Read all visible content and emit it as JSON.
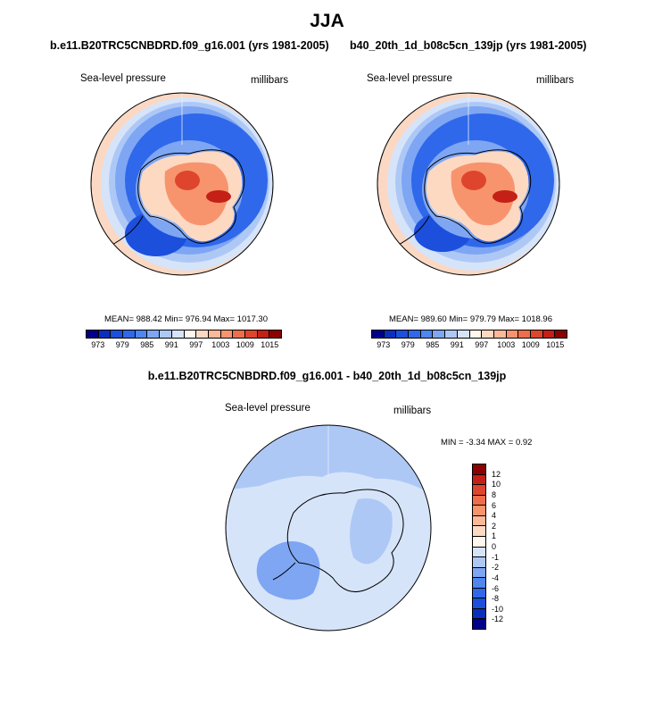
{
  "page": {
    "title": "JJA"
  },
  "panel_left": {
    "title": "b.e11.B20TRC5CNBDRD.f09_g16.001 (yrs 1981-2005)",
    "variable": "Sea-level pressure",
    "units": "millibars",
    "stats": "MEAN= 988.42   Min= 976.94   Max= 1017.30"
  },
  "panel_right": {
    "title": "b40_20th_1d_b08c5cn_139jp (yrs 1981-2005)",
    "variable": "Sea-level pressure",
    "units": "millibars",
    "stats": "MEAN= 989.60   Min= 979.79   Max= 1018.96"
  },
  "panel_diff": {
    "title": "b.e11.B20TRC5CNBDRD.f09_g16.001 - b40_20th_1d_b08c5cn_139jp",
    "variable": "Sea-level pressure",
    "units": "millibars",
    "stats": "MIN =  -3.34  MAX =   0.92"
  },
  "colorbar_main": {
    "colors": [
      "#00008b",
      "#0a2fbf",
      "#1c4fdc",
      "#2f68ea",
      "#4f86ef",
      "#7ea6f3",
      "#aec8f6",
      "#d6e4fa",
      "#fff6ee",
      "#fdd9c2",
      "#fcb898",
      "#f7946e",
      "#ee6e4b",
      "#df452d",
      "#c42016",
      "#8b0000"
    ],
    "labels": [
      "973",
      "979",
      "985",
      "991",
      "997",
      "1003",
      "1009",
      "1015"
    ]
  },
  "colorbar_diff": {
    "colors": [
      "#8b0000",
      "#c42016",
      "#df452d",
      "#ee6e4b",
      "#f7946e",
      "#fcb898",
      "#fdd9c2",
      "#fff6ee",
      "#d6e4fa",
      "#aec8f6",
      "#7ea6f3",
      "#4f86ef",
      "#2f68ea",
      "#1c4fdc",
      "#0a2fbf",
      "#00008b"
    ],
    "labels": [
      "12",
      "10",
      "8",
      "6",
      "4",
      "2",
      "1",
      "0",
      "-1",
      "-2",
      "-4",
      "-6",
      "-8",
      "-10",
      "-12"
    ]
  }
}
